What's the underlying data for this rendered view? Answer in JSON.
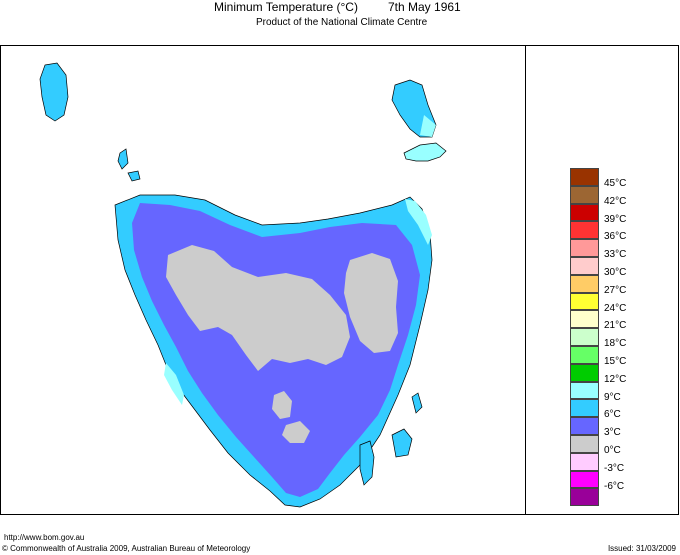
{
  "title": {
    "main": "Minimum Temperature (°C)",
    "date": "7th May 1961",
    "subtitle": "Product of the National Climate Centre"
  },
  "legend": {
    "items": [
      {
        "label": "45°C",
        "color": "#993300"
      },
      {
        "label": "42°C",
        "color": "#9c6633"
      },
      {
        "label": "39°C",
        "color": "#cc0000"
      },
      {
        "label": "36°C",
        "color": "#ff3333"
      },
      {
        "label": "33°C",
        "color": "#ff9999"
      },
      {
        "label": "30°C",
        "color": "#ffcccc"
      },
      {
        "label": "27°C",
        "color": "#ffcc66"
      },
      {
        "label": "24°C",
        "color": "#ffff33"
      },
      {
        "label": "21°C",
        "color": "#ffffcc"
      },
      {
        "label": "18°C",
        "color": "#ccffcc"
      },
      {
        "label": "15°C",
        "color": "#66ff66"
      },
      {
        "label": "12°C",
        "color": "#00cc00"
      },
      {
        "label": "9°C",
        "color": "#99ffff"
      },
      {
        "label": "6°C",
        "color": "#33ccff"
      },
      {
        "label": "3°C",
        "color": "#6666ff"
      },
      {
        "label": "0°C",
        "color": "#cccccc"
      },
      {
        "label": "-3°C",
        "color": "#ffccff"
      },
      {
        "label": "-6°C",
        "color": "#ff00ff"
      },
      {
        "label": "",
        "color": "#990099"
      }
    ]
  },
  "map_colors": {
    "pale_cyan": "#99ffff",
    "cyan": "#33ccff",
    "blue": "#6666ff",
    "grey": "#cccccc",
    "coast": "#000000"
  },
  "footer": {
    "url": "http://www.bom.gov.au",
    "copyright": "© Commonwealth of Australia 2009, Australian Bureau of Meteorology",
    "issued": "Issued: 31/03/2009"
  }
}
